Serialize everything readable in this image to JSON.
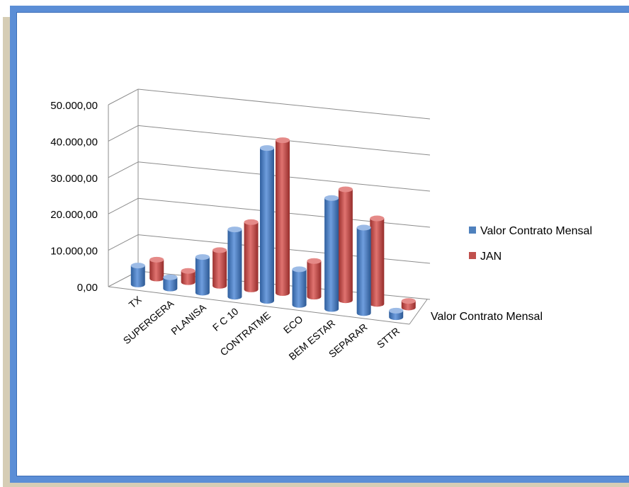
{
  "chart_data": {
    "type": "bar",
    "categories": [
      "TX",
      "SUPERGERA",
      "PLANISA",
      "F C 10",
      "CONTRATME",
      "ECO",
      "BEM ESTAR",
      "SEPARAR",
      "STTR"
    ],
    "series": [
      {
        "name": "Valor Contrato Mensal",
        "values": [
          5200,
          3100,
          9800,
          18500,
          42000,
          9800,
          30500,
          23500,
          1800
        ],
        "color": "#4f81bd"
      },
      {
        "name": "JAN",
        "values": [
          5200,
          3100,
          9800,
          18500,
          42000,
          9800,
          30500,
          23500,
          1800
        ],
        "color": "#c0504d"
      }
    ],
    "ylim": [
      0,
      50000
    ],
    "yticks": [
      "0,00",
      "10.000,00",
      "20.000,00",
      "30.000,00",
      "40.000,00",
      "50.000,00"
    ],
    "depth_axis_label": "Valor Contrato Mensal",
    "legend_position": "right",
    "grid": true
  }
}
